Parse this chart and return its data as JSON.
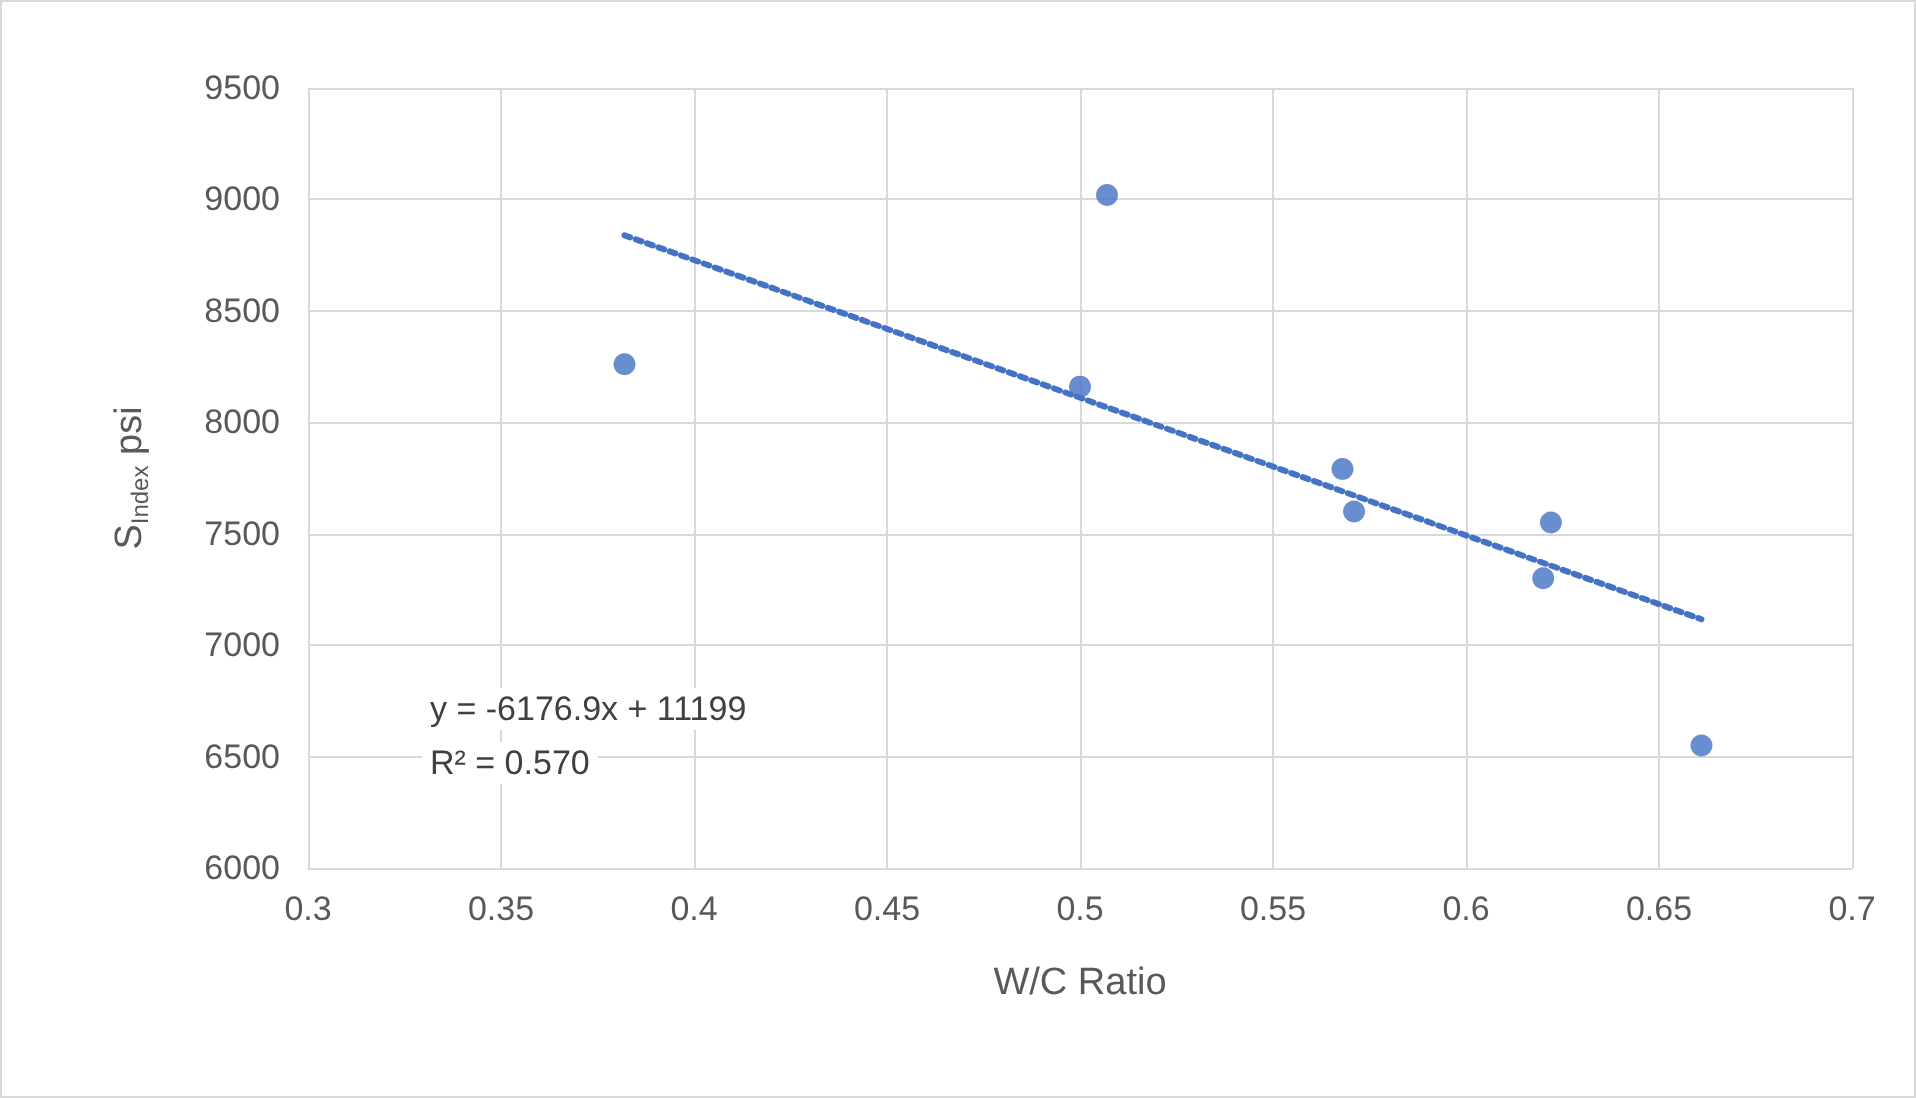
{
  "chart_data": {
    "type": "scatter",
    "xlabel": "W/C Ratio",
    "ylabel": "S$_{Index}$ psi",
    "xlim": [
      0.3,
      0.7
    ],
    "xticks": [
      0.3,
      0.35,
      0.4,
      0.45,
      0.5,
      0.55,
      0.6,
      0.65,
      0.7
    ],
    "ylim": [
      6000,
      9500
    ],
    "yticks": [
      6000,
      6500,
      7000,
      7500,
      8000,
      8500,
      9000,
      9500
    ],
    "grid": true,
    "legend": false,
    "marker": "circle",
    "series": [
      {
        "color": "#4472c4",
        "x": [
          0.382,
          0.507,
          0.5,
          0.568,
          0.571,
          0.622,
          0.62,
          0.661
        ],
        "values": [
          8260,
          9020,
          8160,
          7790,
          7600,
          7550,
          7300,
          6550
        ]
      },
      {
        "type": "line",
        "color": "#4472c4",
        "line_style": "dotted",
        "marker": "none",
        "x": [
          0.382,
          0.661
        ],
        "values": [
          8839,
          7116
        ]
      }
    ],
    "annotations": [
      "y = -6176.9x + 11199",
      "R² = 0.570"
    ]
  }
}
